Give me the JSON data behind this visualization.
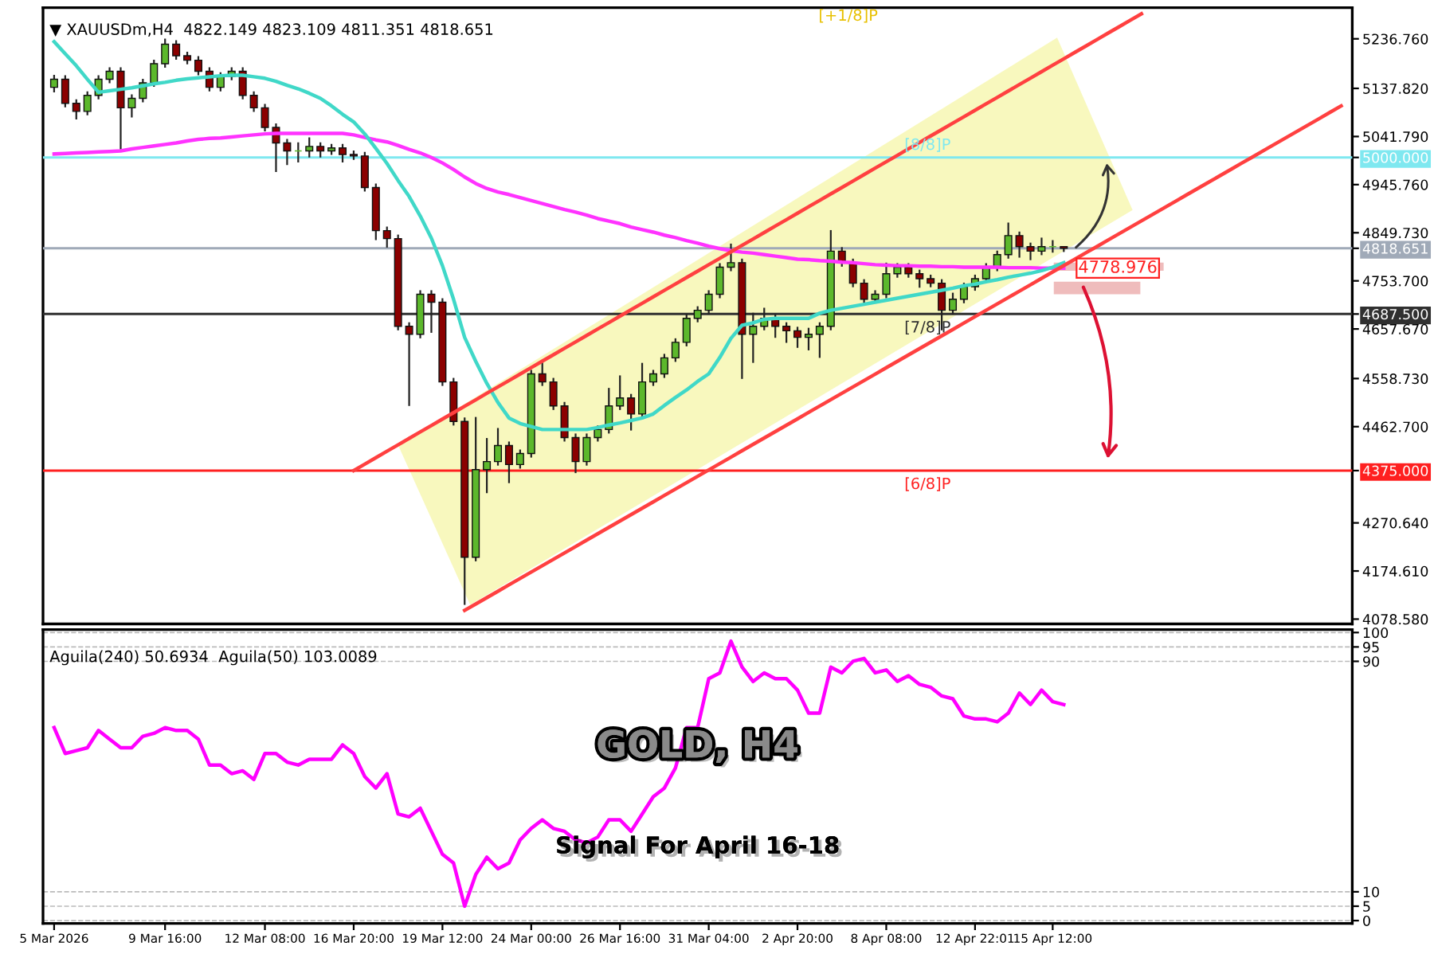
{
  "chart_data": [
    {
      "type": "candlestick",
      "title": "▼ XAUUSDm,H4  4822.149 4823.109 4811.351 4818.651",
      "categories": [
        null,
        null,
        null,
        null,
        null,
        null,
        null,
        null,
        null,
        null,
        null,
        null,
        null,
        null,
        null,
        null,
        null,
        null,
        null,
        null,
        null,
        null,
        null,
        null,
        null,
        null,
        null,
        null,
        null,
        null,
        null,
        null,
        null,
        null,
        null,
        null,
        null,
        null,
        null,
        null,
        null,
        null,
        null,
        null,
        null,
        null,
        null,
        null,
        null,
        null,
        null,
        null,
        null,
        null,
        null,
        null,
        null,
        null,
        null,
        null,
        null,
        null,
        null,
        null,
        null,
        null,
        null,
        null,
        null,
        null,
        null,
        null,
        null,
        null,
        null,
        null,
        null,
        null,
        null,
        null,
        null,
        null,
        null,
        null,
        null,
        null,
        null,
        null,
        null,
        null,
        null,
        null,
        null,
        null,
        null,
        null,
        null,
        null,
        null,
        null,
        null,
        null,
        null,
        null,
        null,
        null,
        null,
        null,
        null,
        null,
        null,
        null,
        null,
        null,
        null,
        null,
        null
      ],
      "ohlc": [
        [
          5140,
          5165,
          5130,
          5156
        ],
        [
          5156,
          5164,
          5100,
          5108
        ],
        [
          5108,
          5116,
          5076,
          5092
        ],
        [
          5092,
          5132,
          5084,
          5124
        ],
        [
          5124,
          5164,
          5116,
          5156
        ],
        [
          5156,
          5180,
          5148,
          5172
        ],
        [
          5172,
          5180,
          5016,
          5099
        ],
        [
          5099,
          5126,
          5080,
          5118
        ],
        [
          5118,
          5157,
          5110,
          5149
        ],
        [
          5149,
          5195,
          5141,
          5187
        ],
        [
          5187,
          5237,
          5179,
          5226
        ],
        [
          5226,
          5234,
          5195,
          5203
        ],
        [
          5203,
          5211,
          5186,
          5194
        ],
        [
          5194,
          5202,
          5164,
          5172
        ],
        [
          5172,
          5180,
          5132,
          5140
        ],
        [
          5140,
          5170,
          5132,
          5162
        ],
        [
          5162,
          5180,
          5154,
          5172
        ],
        [
          5172,
          5180,
          5116,
          5124
        ],
        [
          5124,
          5132,
          5091,
          5099
        ],
        [
          5099,
          5107,
          5052,
          5060
        ],
        [
          5060,
          5068,
          4971,
          5029
        ],
        [
          5029,
          5037,
          4985,
          5013
        ],
        [
          5013,
          5030,
          4990,
          5013
        ],
        [
          5013,
          5040,
          5000,
          5022
        ],
        [
          5022,
          5030,
          5000,
          5013
        ],
        [
          5013,
          5027,
          5005,
          5019
        ],
        [
          5019,
          5027,
          4990,
          5006
        ],
        [
          5006,
          5014,
          4995,
          5003
        ],
        [
          5003,
          5011,
          4932,
          4940
        ],
        [
          4940,
          4948,
          4835,
          4854
        ],
        [
          4854,
          4862,
          4820,
          4838
        ],
        [
          4838,
          4846,
          4655,
          4663
        ],
        [
          4663,
          4671,
          4504,
          4647
        ],
        [
          4647,
          4735,
          4639,
          4727
        ],
        [
          4727,
          4735,
          4650,
          4711
        ],
        [
          4711,
          4719,
          4544,
          4552
        ],
        [
          4552,
          4560,
          4465,
          4473
        ],
        [
          4473,
          4481,
          4107,
          4202
        ],
        [
          4202,
          4482,
          4194,
          4377
        ],
        [
          4377,
          4440,
          4330,
          4393
        ],
        [
          4393,
          4460,
          4385,
          4425
        ],
        [
          4425,
          4433,
          4350,
          4387
        ],
        [
          4387,
          4417,
          4379,
          4409
        ],
        [
          4409,
          4576,
          4401,
          4568
        ],
        [
          4568,
          4595,
          4544,
          4552
        ],
        [
          4552,
          4560,
          4496,
          4504
        ],
        [
          4504,
          4512,
          4433,
          4441
        ],
        [
          4441,
          4449,
          4370,
          4393
        ],
        [
          4393,
          4449,
          4385,
          4441
        ],
        [
          4441,
          4465,
          4433,
          4457
        ],
        [
          4457,
          4540,
          4449,
          4504
        ],
        [
          4504,
          4565,
          4496,
          4520
        ],
        [
          4520,
          4528,
          4455,
          4488
        ],
        [
          4488,
          4590,
          4480,
          4552
        ],
        [
          4552,
          4576,
          4544,
          4568
        ],
        [
          4568,
          4608,
          4560,
          4600
        ],
        [
          4600,
          4639,
          4592,
          4631
        ],
        [
          4631,
          4687,
          4623,
          4679
        ],
        [
          4679,
          4703,
          4671,
          4695
        ],
        [
          4695,
          4735,
          4687,
          4727
        ],
        [
          4727,
          4789,
          4719,
          4781
        ],
        [
          4781,
          4828,
          4773,
          4790
        ],
        [
          4790,
          4798,
          4558,
          4647
        ],
        [
          4647,
          4690,
          4590,
          4663
        ],
        [
          4663,
          4700,
          4655,
          4679
        ],
        [
          4679,
          4687,
          4640,
          4663
        ],
        [
          4663,
          4671,
          4630,
          4654
        ],
        [
          4654,
          4662,
          4620,
          4641
        ],
        [
          4641,
          4660,
          4615,
          4647
        ],
        [
          4647,
          4671,
          4600,
          4663
        ],
        [
          4663,
          4855,
          4655,
          4813
        ],
        [
          4813,
          4821,
          4782,
          4790
        ],
        [
          4790,
          4798,
          4741,
          4749
        ],
        [
          4749,
          4757,
          4709,
          4717
        ],
        [
          4717,
          4735,
          4709,
          4727
        ],
        [
          4727,
          4790,
          4719,
          4768
        ],
        [
          4768,
          4789,
          4760,
          4781
        ],
        [
          4781,
          4789,
          4760,
          4768
        ],
        [
          4768,
          4776,
          4740,
          4758
        ],
        [
          4758,
          4766,
          4741,
          4749
        ],
        [
          4749,
          4757,
          4655,
          4695
        ],
        [
          4695,
          4730,
          4687,
          4717
        ],
        [
          4717,
          4750,
          4709,
          4742
        ],
        [
          4742,
          4766,
          4734,
          4758
        ],
        [
          4758,
          4789,
          4750,
          4781
        ],
        [
          4781,
          4814,
          4773,
          4806
        ],
        [
          4806,
          4870,
          4798,
          4844
        ],
        [
          4844,
          4852,
          4800,
          4822
        ],
        [
          4822,
          4830,
          4795,
          4813
        ],
        [
          4813,
          4840,
          4805,
          4822
        ],
        [
          4822,
          4835,
          4810,
          4822
        ],
        [
          4822.149,
          4823.109,
          4811.351,
          4818.651
        ],
        null,
        null,
        null,
        null,
        null,
        null,
        null,
        null,
        null,
        null,
        null,
        null,
        null,
        null,
        null,
        null,
        null,
        null,
        null,
        null,
        null,
        null,
        null,
        null,
        null
      ],
      "colors": [
        "#5cb82c",
        "#8b0000",
        "#8b0000",
        "#5cb82c",
        "#5cb82c",
        "#5cb82c",
        "#8b0000",
        "#5cb82c",
        "#5cb82c",
        "#5cb82c",
        "#5cb82c",
        "#8b0000",
        "#8b0000",
        "#8b0000",
        "#8b0000",
        "#5cb82c",
        "#5cb82c",
        "#8b0000",
        "#8b0000",
        "#8b0000",
        "#8b0000",
        "#8b0000",
        "#5cb82c",
        "#5cb82c",
        "#8b0000",
        "#5cb82c",
        "#8b0000",
        "#8b0000",
        "#8b0000",
        "#8b0000",
        "#8b0000",
        "#8b0000",
        "#8b0000",
        "#5cb82c",
        "#8b0000",
        "#8b0000",
        "#8b0000",
        "#8b0000",
        "#5cb82c",
        "#5cb82c",
        "#5cb82c",
        "#8b0000",
        "#5cb82c",
        "#5cb82c",
        "#8b0000",
        "#8b0000",
        "#8b0000",
        "#8b0000",
        "#5cb82c",
        "#5cb82c",
        "#5cb82c",
        "#5cb82c",
        "#8b0000",
        "#5cb82c",
        "#5cb82c",
        "#5cb82c",
        "#5cb82c",
        "#5cb82c",
        "#5cb82c",
        "#5cb82c",
        "#5cb82c",
        "#5cb82c",
        "#8b0000",
        "#5cb82c",
        "#5cb82c",
        "#8b0000",
        "#8b0000",
        "#8b0000",
        "#5cb82c",
        "#5cb82c",
        "#5cb82c",
        "#8b0000",
        "#8b0000",
        "#8b0000",
        "#5cb82c",
        "#5cb82c",
        "#5cb82c",
        "#8b0000",
        "#8b0000",
        "#8b0000",
        "#8b0000",
        "#5cb82c",
        "#5cb82c",
        "#5cb82c",
        "#5cb82c",
        "#5cb82c",
        "#5cb82c",
        "#8b0000",
        "#8b0000",
        "#5cb82c",
        "#5cb82c",
        "#8b0000",
        null,
        null,
        null,
        null,
        null,
        null,
        null,
        null,
        null,
        null,
        null,
        null,
        null,
        null,
        null,
        null,
        null,
        null,
        null,
        null,
        null,
        null,
        null,
        null,
        null
      ],
      "series": [
        {
          "type": "line",
          "color": "#ff33ff",
          "values": [
            5007,
            5008,
            5009,
            5010,
            5011,
            5012,
            5013,
            5017,
            5020,
            5023,
            5026,
            5029,
            5033,
            5036,
            5038,
            5039,
            5041,
            5043,
            5045,
            5047,
            5048,
            5048,
            5048,
            5048,
            5048,
            5048,
            5048,
            5045,
            5040,
            5035,
            5031,
            5024,
            5016,
            5009,
            5000,
            4989,
            4976,
            4961,
            4948,
            4938,
            4931,
            4926,
            4920,
            4914,
            4908,
            4902,
            4896,
            4891,
            4885,
            4878,
            4873,
            4868,
            4861,
            4856,
            4851,
            4845,
            4840,
            4834,
            4829,
            4823,
            4818,
            4814,
            4811,
            4809,
            4806,
            4803,
            4800,
            4797,
            4796,
            4794,
            4793,
            4791,
            4790,
            4788,
            4786,
            4785,
            4784,
            4784,
            4783,
            4783,
            4782,
            4782,
            4781,
            4781,
            4781,
            4781,
            4780,
            4780,
            4780,
            4779,
            4779,
            4779,
            null,
            null,
            null,
            null,
            null,
            null,
            null,
            null,
            null,
            null,
            null,
            null,
            null,
            null,
            null,
            null,
            null,
            null,
            null,
            null,
            null,
            null,
            null,
            null,
            null
          ]
        },
        {
          "type": "line",
          "color": "#40d8c8",
          "values": [
            5231,
            5207,
            5183,
            5156,
            5130,
            5133,
            5136,
            5139,
            5143,
            5147,
            5150,
            5154,
            5157,
            5159,
            5161,
            5163,
            5164,
            5164,
            5161,
            5158,
            5152,
            5144,
            5137,
            5128,
            5118,
            5103,
            5086,
            5071,
            5047,
            5018,
            4988,
            4954,
            4922,
            4883,
            4839,
            4784,
            4717,
            4641,
            4593,
            4549,
            4511,
            4480,
            4469,
            4463,
            4457,
            4457,
            4457,
            4457,
            4457,
            4461,
            4466,
            4470,
            4475,
            4480,
            4488,
            4505,
            4521,
            4536,
            4553,
            4568,
            4601,
            4639,
            4665,
            4670,
            4677,
            4679,
            4679,
            4679,
            4679,
            4689,
            4695,
            4699,
            4703,
            4707,
            4711,
            4715,
            4719,
            4723,
            4727,
            4731,
            4735,
            4739,
            4744,
            4747,
            4752,
            4756,
            4761,
            4765,
            4769,
            4774,
            4781,
            4790,
            null,
            null,
            null,
            null,
            null,
            null,
            null,
            null,
            null,
            null,
            null,
            null,
            null,
            null,
            null,
            null,
            null,
            null,
            null,
            null,
            null,
            null,
            null,
            null,
            null
          ]
        },
        {
          "type": "line",
          "color": "#ff4040",
          "values": [
            null,
            null,
            null,
            null,
            null,
            null,
            null,
            null,
            null,
            null,
            null,
            null,
            null,
            null,
            null,
            null,
            null,
            null,
            null,
            null,
            null,
            null,
            null,
            null,
            null,
            null,
            null,
            4375.1,
            4387.9,
            4400.8,
            4413.6,
            4426.4,
            4439.3,
            4452.1,
            4465.0,
            4477.8,
            4490.6,
            4503.5,
            4516.3,
            4529.2,
            4542.0,
            4554.8,
            4567.7,
            4580.5,
            4593.4,
            4606.2,
            4619.0,
            4631.9,
            4644.7,
            4657.6,
            4670.4,
            4683.2,
            4696.1,
            4708.9,
            4721.8,
            4734.6,
            4747.4,
            4760.3,
            4773.1,
            4786.0,
            4798.8,
            4811.6,
            4824.5,
            4837.3,
            4850.2,
            4863.0,
            4875.8,
            4888.7,
            4901.5,
            4914.4,
            4927.2,
            4940.0,
            4952.9,
            4965.7,
            4978.6,
            4991.4,
            5004.2,
            5017.1,
            5029.9,
            5042.8,
            5055.6,
            5068.4,
            5081.3,
            5094.1,
            5107.0,
            5119.8,
            5132.6,
            5145.5,
            5158.3,
            5171.2,
            5184.0,
            5196.8,
            5209.7,
            5222.5,
            5235.4,
            5248.2,
            5261.0,
            5273.9,
            5286.7,
            null,
            null,
            null,
            null,
            null,
            null,
            null,
            null,
            null,
            null,
            null,
            null,
            null,
            null,
            null,
            null,
            null,
            null
          ]
        },
        {
          "type": "line",
          "color": "#ff4040",
          "values": [
            null,
            null,
            null,
            null,
            null,
            null,
            null,
            null,
            null,
            null,
            null,
            null,
            null,
            null,
            null,
            null,
            null,
            null,
            null,
            null,
            null,
            null,
            null,
            null,
            null,
            null,
            null,
            null,
            null,
            null,
            null,
            null,
            null,
            null,
            null,
            null,
            null,
            4096.0,
            4108.7,
            4121.5,
            4134.2,
            4147.0,
            4159.7,
            4172.4,
            4185.2,
            4197.9,
            4210.7,
            4223.4,
            4236.2,
            4248.9,
            4261.7,
            4274.4,
            4287.1,
            4299.9,
            4312.6,
            4325.4,
            4338.1,
            4350.9,
            4363.6,
            4376.4,
            4389.1,
            4401.8,
            4414.6,
            4427.3,
            4440.1,
            4452.8,
            4465.6,
            4478.3,
            4491.1,
            4503.8,
            4516.5,
            4529.3,
            4542.0,
            4554.8,
            4567.5,
            4580.3,
            4593.0,
            4605.8,
            4618.5,
            4631.2,
            4644.0,
            4656.7,
            4669.5,
            4682.2,
            4695.0,
            4707.7,
            4720.5,
            4733.2,
            4745.9,
            4758.7,
            4771.4,
            4784.2,
            4796.9,
            4809.7,
            4822.4,
            4835.2,
            4847.9,
            4860.7,
            4873.4,
            4886.1,
            4898.9,
            4911.6,
            4924.4,
            4937.1,
            4949.9,
            4962.6,
            4975.3,
            4988.1,
            5000.8,
            5013.6,
            5026.3,
            5039.1,
            5051.8,
            5064.6,
            5077.3,
            5090.1,
            5102.8
          ]
        }
      ],
      "ylim": [
        4069,
        5299
      ],
      "yticks": [
        {
          "value": 5236.76,
          "label": "5236.760"
        },
        {
          "value": 5137.82,
          "label": "5137.820"
        },
        {
          "value": 5041.79,
          "label": "5041.790"
        },
        {
          "value": 5000,
          "label": "5000.000"
        },
        {
          "value": 4945.76,
          "label": "4945.760"
        },
        {
          "value": 4849.73,
          "label": "4849.730"
        },
        {
          "value": 4818.651,
          "label": "4818.651"
        },
        {
          "value": 4753.7,
          "label": "4753.700"
        },
        {
          "value": 4687.5,
          "label": "4687.500"
        },
        {
          "value": 4657.67,
          "label": "4657.670"
        },
        {
          "value": 4558.73,
          "label": "4558.730"
        },
        {
          "value": 4462.7,
          "label": "4462.700"
        },
        {
          "value": 4375,
          "label": "4375.000"
        },
        {
          "value": 4270.64,
          "label": "4270.640"
        },
        {
          "value": 4174.61,
          "label": "4174.610"
        },
        {
          "value": 4078.58,
          "label": "4078.580"
        }
      ],
      "ref_lines": [
        {
          "axis": "y",
          "value": 5000,
          "label": "[8/8]P",
          "color": "#7fe8f0"
        },
        {
          "axis": "y",
          "value": 4818.651,
          "color": "#a0aab8"
        },
        {
          "axis": "y",
          "value": 4687.5,
          "label": "[7/8]P",
          "color": "#303030"
        },
        {
          "axis": "y",
          "value": 4375,
          "label": "[6/8]P",
          "color": "#ff2020"
        }
      ],
      "annotations": [
        "[+1/8]P",
        "4778.976"
      ],
      "tick_labels": "y"
    },
    {
      "type": "line",
      "title": "Aguila(240) 50.6934  Aguila(50) 103.0089",
      "categories": [
        "5 Mar 2026",
        null,
        null,
        null,
        null,
        null,
        null,
        null,
        null,
        null,
        "9 Mar 16:00",
        null,
        null,
        null,
        null,
        null,
        null,
        null,
        null,
        "12 Mar 08:00",
        null,
        null,
        null,
        null,
        null,
        null,
        null,
        "16 Mar 20:00",
        null,
        null,
        null,
        null,
        null,
        null,
        null,
        "19 Mar 12:00",
        null,
        null,
        null,
        null,
        null,
        null,
        null,
        "24 Mar 00:00",
        null,
        null,
        null,
        null,
        null,
        null,
        null,
        "26 Mar 16:00",
        null,
        null,
        null,
        null,
        null,
        null,
        null,
        "31 Mar 04:00",
        null,
        null,
        null,
        null,
        null,
        null,
        null,
        "2 Apr 20:00",
        null,
        null,
        null,
        null,
        null,
        null,
        null,
        "8 Apr 08:00",
        null,
        null,
        null,
        null,
        null,
        null,
        null,
        "12 Apr 22:01",
        null,
        null,
        null,
        null,
        null,
        null,
        "15 Apr 12:00",
        null,
        null,
        null,
        null,
        null,
        null,
        null,
        null,
        null,
        null,
        null,
        null,
        null,
        null,
        null,
        null,
        null,
        null,
        null,
        null,
        null,
        null,
        null,
        null,
        null,
        null
      ],
      "series": [
        {
          "color": "#ff00ff",
          "values": [
            67,
            58,
            59,
            60,
            66,
            63,
            60,
            60,
            64,
            65,
            67,
            66,
            66,
            63,
            54,
            54,
            51,
            52,
            49,
            58,
            58,
            55,
            54,
            56,
            56,
            56,
            61,
            58,
            50,
            46,
            51,
            37,
            36,
            39,
            31,
            23,
            20,
            5,
            16,
            22,
            18,
            20,
            28,
            32,
            35,
            32,
            31,
            28,
            27,
            29,
            35,
            35,
            31,
            37,
            43,
            46,
            53,
            67,
            67,
            84,
            86,
            97,
            88,
            83,
            86,
            84,
            84,
            80,
            72,
            72,
            88,
            86,
            90,
            91,
            86,
            87,
            83,
            85,
            82,
            81,
            78,
            77,
            71,
            70,
            70,
            69,
            72,
            79,
            75,
            80,
            76,
            75,
            null,
            null,
            null,
            null,
            null,
            null,
            null,
            null,
            null,
            null,
            null,
            null,
            null,
            null,
            null,
            null,
            null,
            null,
            null,
            null,
            null,
            null,
            null,
            null,
            null
          ]
        }
      ],
      "ylim": [
        -1,
        101
      ],
      "yticks": [
        0,
        5,
        10,
        90,
        95,
        100
      ],
      "grid": "y",
      "annotations": [
        "GOLD, H4",
        "Signal For April 16-18"
      ]
    }
  ]
}
